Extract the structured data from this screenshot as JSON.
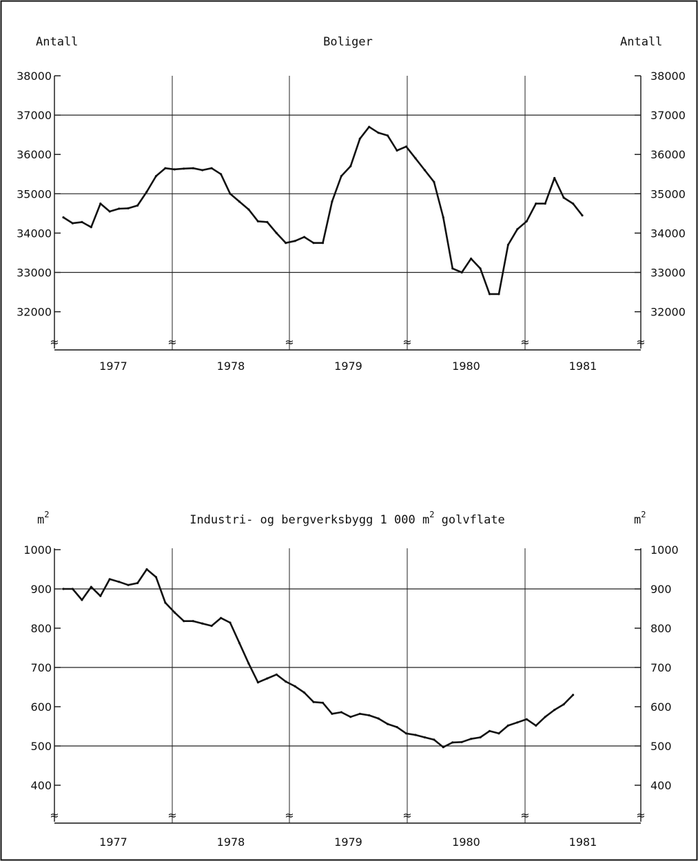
{
  "chart_data": [
    {
      "type": "line",
      "title": "Boliger",
      "ylabel_left": "Antall",
      "ylabel_right": "Antall",
      "x_categories": [
        "1977",
        "1978",
        "1979",
        "1980",
        "1981"
      ],
      "y_ticks": [
        38000,
        37000,
        36000,
        35000,
        34000,
        33000,
        32000
      ],
      "ylim": [
        31000,
        38000
      ],
      "grid_y": [
        37000,
        35000,
        33000
      ],
      "x_break_marker": "≈",
      "series": [
        {
          "x_unit": "month index from Jan 1977",
          "x": [
            0,
            1,
            2,
            3,
            4,
            5,
            6,
            7,
            8,
            9,
            10,
            11,
            12,
            13,
            14,
            15,
            16,
            17,
            18,
            19,
            20,
            21,
            22,
            23,
            24,
            25,
            26,
            27,
            28,
            29,
            30,
            31,
            32,
            33,
            34,
            35,
            36,
            37,
            38,
            39,
            40,
            41,
            42,
            43,
            44,
            45,
            46,
            47,
            48,
            49,
            50,
            51,
            52,
            53,
            54,
            55,
            56
          ],
          "values": [
            34400,
            34250,
            34280,
            34150,
            34750,
            34550,
            34620,
            34630,
            34700,
            35050,
            35450,
            35650,
            35620,
            35640,
            35650,
            35600,
            35650,
            35500,
            35000,
            34800,
            34600,
            34300,
            34280,
            34000,
            33750,
            33800,
            33900,
            33750,
            33750,
            34800,
            35450,
            35700,
            36400,
            36700,
            36550,
            36480,
            36100,
            36200,
            35900,
            35600,
            35300,
            34400,
            33100,
            33000,
            33350,
            33100,
            32450,
            32450,
            33700,
            34100,
            34300,
            34750,
            34750,
            35400,
            34900,
            34750,
            34450
          ]
        }
      ]
    },
    {
      "type": "line",
      "title": "Industri- og bergverksbygg 1 000 m² golvflate",
      "ylabel_left": "m²",
      "ylabel_right": "m²",
      "x_categories": [
        "1977",
        "1978",
        "1979",
        "1980",
        "1981"
      ],
      "y_ticks": [
        1000,
        900,
        800,
        700,
        600,
        500,
        400
      ],
      "ylim": [
        300,
        1000
      ],
      "grid_y": [
        900,
        700,
        500
      ],
      "x_break_marker": "≈",
      "series": [
        {
          "x_unit": "month index from Jan 1977",
          "x": [
            0,
            1,
            2,
            3,
            4,
            5,
            6,
            7,
            8,
            9,
            10,
            11,
            12,
            13,
            14,
            15,
            16,
            17,
            18,
            19,
            20,
            21,
            22,
            23,
            24,
            25,
            26,
            27,
            28,
            29,
            30,
            31,
            32,
            33,
            34,
            35,
            36,
            37,
            38,
            39,
            40,
            41,
            42,
            43,
            44,
            45,
            46,
            47,
            48,
            49,
            50,
            51,
            52,
            53,
            54,
            55,
            56
          ],
          "values": [
            900,
            900,
            872,
            905,
            882,
            925,
            918,
            910,
            915,
            950,
            930,
            865,
            840,
            818,
            818,
            812,
            806,
            826,
            814,
            762,
            710,
            662,
            672,
            682,
            664,
            652,
            636,
            612,
            610,
            582,
            586,
            574,
            582,
            578,
            570,
            556,
            548,
            532,
            528,
            522,
            516,
            497,
            509,
            510,
            518,
            522,
            538,
            532,
            552,
            560,
            568,
            552,
            574,
            592,
            606,
            630,
            null
          ]
        }
      ]
    }
  ]
}
